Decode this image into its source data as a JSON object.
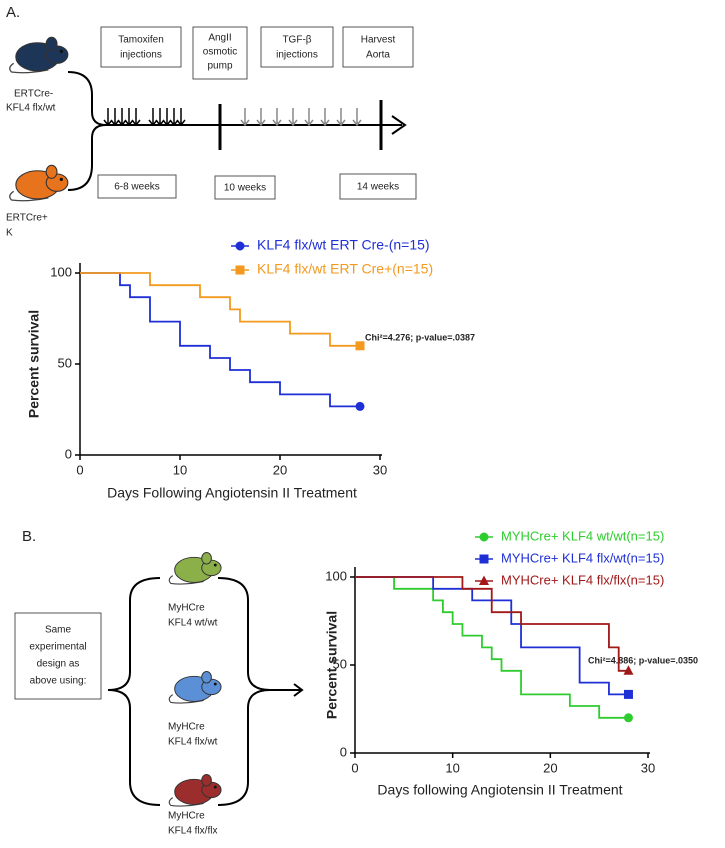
{
  "panel_a": {
    "label": "A.",
    "boxes": [
      [
        "Tamoxifen",
        "injections"
      ],
      [
        "AngII",
        "osmotic",
        "pump"
      ],
      [
        "TGF-β",
        "injections"
      ],
      [
        "Harvest",
        "Aorta"
      ]
    ],
    "durations": [
      "6-8 weeks",
      "10 weeks",
      "14 weeks"
    ],
    "mice": [
      [
        "ERTCre-",
        "KFL4 flx/wt"
      ],
      [
        "ERTCre+",
        "K"
      ]
    ]
  },
  "panel_b": {
    "label": "B.",
    "design": [
      "Same",
      "experimental",
      "design as",
      "above using:"
    ],
    "mice": [
      [
        "MyHCre",
        "KFL4 wt/wt"
      ],
      [
        "MyHCre",
        "KFL4 flx/wt"
      ],
      [
        "MyHCre",
        "KFL4 flx/flx"
      ]
    ]
  },
  "chart_data": [
    {
      "type": "step",
      "ylabel": "Percent survival",
      "xlabel": "Days Following Angiotensin II Treatment",
      "annotation": "Chi²=4.276; p-value=.0387",
      "xlim": [
        0,
        30
      ],
      "xticks": [
        0,
        10,
        20,
        30
      ],
      "ylim": [
        0,
        100
      ],
      "yticks": [
        0,
        50,
        100
      ],
      "series": [
        {
          "name": "KLF4 flx/wt ERT Cre-(n=15)",
          "color": "#1f2fd6",
          "marker": "circle",
          "x": [
            0,
            4,
            5,
            7,
            10,
            13,
            15,
            17,
            20,
            25,
            28
          ],
          "values": [
            100,
            93.3,
            86.7,
            73.3,
            60,
            53.3,
            46.7,
            40,
            33.3,
            26.7,
            26.7
          ]
        },
        {
          "name": "KLF4 flx/wt ERT Cre+(n=15)",
          "color": "#f39a1e",
          "marker": "square",
          "x": [
            0,
            7,
            12,
            15,
            16,
            21,
            25,
            28
          ],
          "values": [
            100,
            93.3,
            86.7,
            80,
            73.3,
            66.7,
            60,
            60
          ]
        }
      ]
    },
    {
      "type": "step",
      "ylabel": "Percent survival",
      "xlabel": "Days following Angiotensin II Treatment",
      "annotation": "Chi²=4.886; p-value=.0350",
      "xlim": [
        0,
        30
      ],
      "xticks": [
        0,
        10,
        20,
        30
      ],
      "ylim": [
        0,
        100
      ],
      "yticks": [
        0,
        50,
        100
      ],
      "series": [
        {
          "name": "MYHCre+ KLF4 wt/wt(n=15)",
          "color": "#2ecc2e",
          "marker": "circle",
          "x": [
            0,
            4,
            8,
            9,
            10,
            11,
            13,
            14,
            15,
            17,
            22,
            25,
            28
          ],
          "values": [
            100,
            93.3,
            86.7,
            80,
            73.3,
            66.7,
            60,
            53.3,
            46.7,
            33.3,
            26.7,
            20,
            20
          ]
        },
        {
          "name": "MYHCre+ KLF4 flx/wt(n=15)",
          "color": "#1f2fd6",
          "marker": "square",
          "x": [
            0,
            8,
            12,
            16,
            17,
            23,
            26,
            28
          ],
          "values": [
            100,
            93.3,
            86.7,
            73.3,
            60,
            40,
            33.3,
            33.3
          ]
        },
        {
          "name": "MYHCre+ KLF4 flx/flx(n=15)",
          "color": "#a01818",
          "marker": "triangle",
          "x": [
            0,
            11,
            14,
            17,
            26,
            27,
            28
          ],
          "values": [
            100,
            93.3,
            80,
            73.3,
            60,
            46.7,
            46.7
          ]
        }
      ]
    }
  ]
}
